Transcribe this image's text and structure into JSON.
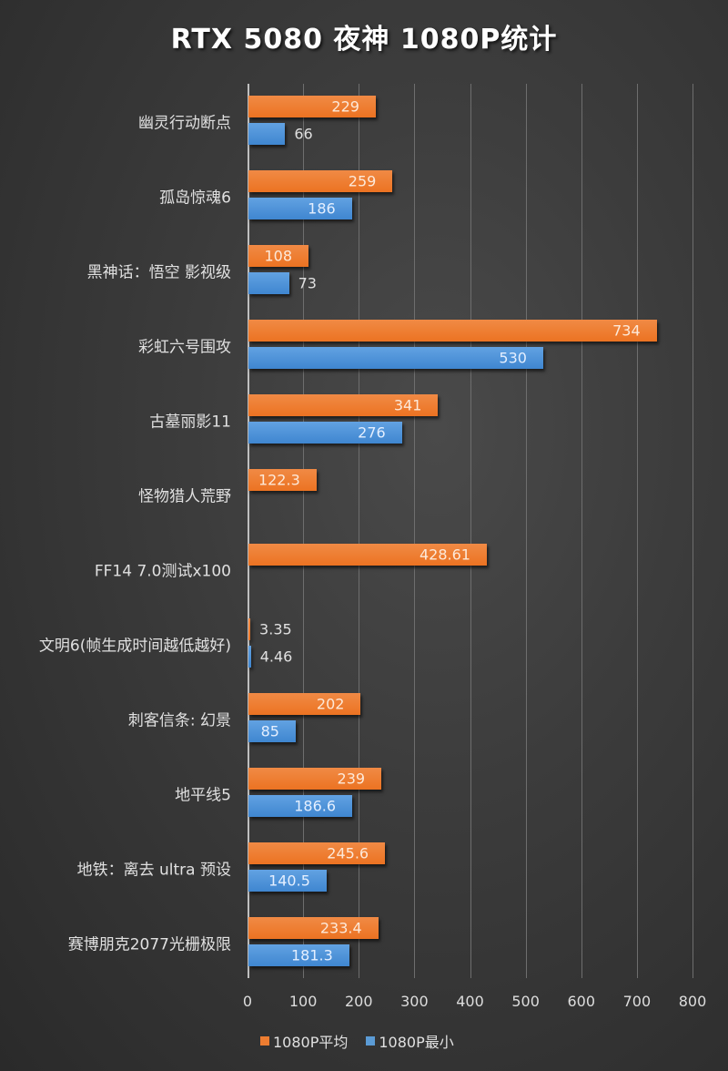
{
  "title": "RTX 5080 夜神 1080P统计",
  "legend": [
    {
      "label": "1080P平均",
      "color": "#ED7D31"
    },
    {
      "label": "1080P最小",
      "color": "#5B9BD5"
    }
  ],
  "x_ticks": [
    "0",
    "100",
    "200",
    "300",
    "400",
    "500",
    "600",
    "700",
    "800"
  ],
  "chart_data": {
    "type": "bar",
    "orientation": "horizontal",
    "title": "RTX 5080 夜神 1080P统计",
    "xlabel": "",
    "ylabel": "",
    "xlim": [
      0,
      800
    ],
    "x_ticks": [
      0,
      100,
      200,
      300,
      400,
      500,
      600,
      700,
      800
    ],
    "grid": true,
    "legend_position": "bottom",
    "categories": [
      "幽灵行动断点",
      "孤岛惊魂6",
      "黑神话：悟空 影视级",
      "彩虹六号围攻",
      "古墓丽影11",
      "怪物猎人荒野",
      "FF14 7.0测试x100",
      "文明6(帧生成时间越低越好)",
      "刺客信条: 幻景",
      "地平线5",
      "地铁：离去 ultra 预设",
      "赛博朋克2077光栅极限"
    ],
    "series": [
      {
        "name": "1080P平均",
        "color": "#ED7D31",
        "values": [
          229,
          259,
          108,
          734,
          341,
          122.3,
          428.61,
          3.35,
          202,
          239,
          245.6,
          233.4
        ],
        "labels": [
          "229",
          "259",
          "108",
          "734",
          "341",
          "122.3",
          "428.61",
          "3.35",
          "202",
          "239",
          "245.6",
          "233.4"
        ]
      },
      {
        "name": "1080P最小",
        "color": "#5B9BD5",
        "values": [
          66,
          186,
          73,
          530,
          276,
          null,
          null,
          4.46,
          85,
          186.6,
          140.5,
          181.3
        ],
        "labels": [
          "66",
          "186",
          "73",
          "530",
          "276",
          "",
          "",
          "4.46",
          "85",
          "186.6",
          "140.5",
          "181.3"
        ]
      }
    ]
  }
}
